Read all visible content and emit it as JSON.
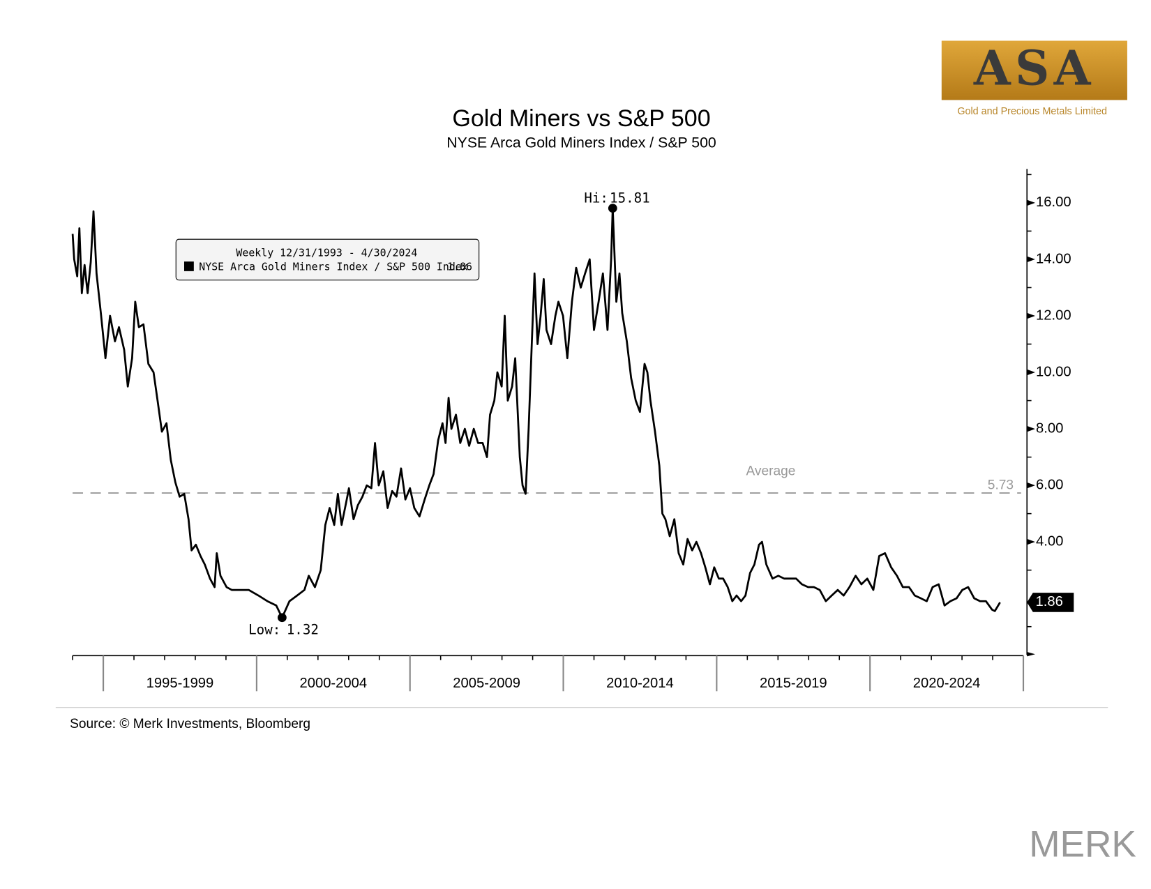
{
  "chart_data": {
    "type": "line",
    "title": "Gold Miners vs S&P 500",
    "subtitle": "NYSE Arca Gold Miners Index / S&P 500",
    "legend_title": "Weekly 12/31/1993 - 4/30/2024",
    "source": "Source: © Merk Investments, Bloomberg",
    "logo": {
      "name": "ASA",
      "tagline": "Gold and Precious Metals Limited"
    },
    "brand": "MERK",
    "hi_label": "Hi:",
    "low_label": "Low:",
    "average": {
      "label": "Average",
      "value": 5.73,
      "color": "#999999"
    },
    "xlim": [
      1994,
      2025.15
    ],
    "xticks": [
      1994,
      1995,
      1996,
      1997,
      1998,
      1999,
      2000,
      2001,
      2002,
      2003,
      2004,
      2005,
      2006,
      2007,
      2008,
      2009,
      2010,
      2011,
      2012,
      2013,
      2014,
      2015,
      2016,
      2017,
      2018,
      2019,
      2020,
      2021,
      2022,
      2023,
      2024,
      2025
    ],
    "major_xticks": [
      1995,
      2000,
      2005,
      2010,
      2015,
      2020,
      2025
    ],
    "x_categories": [
      "1995-1999",
      "2000-2004",
      "2005-2009",
      "2010-2014",
      "2015-2019",
      "2020-2024"
    ],
    "ylim": [
      0,
      17.2
    ],
    "yticks": [
      {
        "value": 4,
        "label": "4.00"
      },
      {
        "value": 6,
        "label": "6.00"
      },
      {
        "value": 8,
        "label": "8.00"
      },
      {
        "value": 10,
        "label": "10.00"
      },
      {
        "value": 12,
        "label": "12.00"
      },
      {
        "value": 14,
        "label": "14.00"
      },
      {
        "value": 16,
        "label": "16.00"
      }
    ],
    "minor_yticks": [
      1,
      3,
      5,
      7,
      9,
      11,
      13,
      15,
      17
    ],
    "series": [
      {
        "name": "NYSE Arca Gold Miners Index / S&P 500 Index",
        "color": "#000000",
        "x": [
          1994.0,
          1994.05,
          1994.15,
          1994.22,
          1994.3,
          1994.39,
          1994.49,
          1994.59,
          1994.68,
          1994.78,
          1994.92,
          1995.07,
          1995.22,
          1995.38,
          1995.51,
          1995.68,
          1995.8,
          1995.94,
          1996.04,
          1996.16,
          1996.31,
          1996.47,
          1996.64,
          1996.77,
          1996.91,
          1997.06,
          1997.2,
          1997.35,
          1997.49,
          1997.64,
          1997.78,
          1997.88,
          1998.02,
          1998.17,
          1998.31,
          1998.48,
          1998.63,
          1998.7,
          1998.82,
          1999.02,
          1999.19,
          1999.48,
          1999.74,
          2000.06,
          2000.35,
          2000.64,
          2000.83,
          2001.07,
          2001.32,
          2001.56,
          2001.7,
          2001.9,
          2002.09,
          2002.24,
          2002.38,
          2002.53,
          2002.65,
          2002.77,
          2002.92,
          2003.01,
          2003.16,
          2003.3,
          2003.45,
          2003.59,
          2003.74,
          2003.86,
          2003.98,
          2004.13,
          2004.27,
          2004.42,
          2004.56,
          2004.71,
          2004.85,
          2005.0,
          2005.14,
          2005.31,
          2005.48,
          2005.63,
          2005.77,
          2005.92,
          2006.06,
          2006.16,
          2006.26,
          2006.35,
          2006.5,
          2006.64,
          2006.79,
          2006.93,
          2007.08,
          2007.22,
          2007.37,
          2007.51,
          2007.61,
          2007.75,
          2007.85,
          2007.99,
          2008.09,
          2008.19,
          2008.33,
          2008.43,
          2008.58,
          2008.67,
          2008.77,
          2008.87,
          2008.97,
          2009.06,
          2009.16,
          2009.26,
          2009.36,
          2009.45,
          2009.6,
          2009.74,
          2009.84,
          2009.99,
          2010.13,
          2010.28,
          2010.42,
          2010.57,
          2010.71,
          2010.86,
          2011.0,
          2011.15,
          2011.29,
          2011.44,
          2011.56,
          2011.61,
          2011.73,
          2011.83,
          2011.92,
          2012.07,
          2012.21,
          2012.36,
          2012.5,
          2012.65,
          2012.74,
          2012.84,
          2012.99,
          2013.13,
          2013.23,
          2013.33,
          2013.47,
          2013.62,
          2013.76,
          2013.91,
          2014.05,
          2014.2,
          2014.34,
          2014.49,
          2014.63,
          2014.78,
          2014.92,
          2015.07,
          2015.21,
          2015.36,
          2015.51,
          2015.65,
          2015.8,
          2015.94,
          2016.09,
          2016.23,
          2016.38,
          2016.48,
          2016.62,
          2016.82,
          2017.01,
          2017.2,
          2017.4,
          2017.59,
          2017.78,
          2017.98,
          2018.17,
          2018.36,
          2018.56,
          2018.75,
          2018.95,
          2019.14,
          2019.33,
          2019.53,
          2019.72,
          2019.91,
          2020.11,
          2020.3,
          2020.49,
          2020.69,
          2020.88,
          2021.07,
          2021.27,
          2021.46,
          2021.66,
          2021.85,
          2022.04,
          2022.24,
          2022.43,
          2022.62,
          2022.82,
          2023.01,
          2023.2,
          2023.4,
          2023.59,
          2023.78,
          2023.98,
          2024.07,
          2024.24
        ],
        "values": [
          14.9,
          14.0,
          13.4,
          15.1,
          12.8,
          13.8,
          12.8,
          13.9,
          15.7,
          13.5,
          12.1,
          10.5,
          12.0,
          11.1,
          11.6,
          10.8,
          9.5,
          10.5,
          12.5,
          11.6,
          11.7,
          10.3,
          10.0,
          9.0,
          7.9,
          8.2,
          6.9,
          6.1,
          5.6,
          5.7,
          4.8,
          3.7,
          3.9,
          3.5,
          3.2,
          2.7,
          2.4,
          3.6,
          2.8,
          2.4,
          2.3,
          2.3,
          2.3,
          2.1,
          1.9,
          1.75,
          1.32,
          1.9,
          2.1,
          2.3,
          2.8,
          2.4,
          3.0,
          4.6,
          5.2,
          4.6,
          5.7,
          4.6,
          5.4,
          5.9,
          4.8,
          5.3,
          5.6,
          6.0,
          5.9,
          7.5,
          6.0,
          6.5,
          5.2,
          5.8,
          5.6,
          6.6,
          5.5,
          5.9,
          5.2,
          4.9,
          5.5,
          6.0,
          6.4,
          7.6,
          8.2,
          7.5,
          9.1,
          8.0,
          8.5,
          7.5,
          8.0,
          7.4,
          8.0,
          7.5,
          7.5,
          7.0,
          8.5,
          9.0,
          10.0,
          9.5,
          12.0,
          9.0,
          9.5,
          10.5,
          7.0,
          6.0,
          5.7,
          8.0,
          11.0,
          13.5,
          11.0,
          12.0,
          13.3,
          11.5,
          11.0,
          12.0,
          12.5,
          12.0,
          10.5,
          12.5,
          13.7,
          13.0,
          13.5,
          14.0,
          11.5,
          12.5,
          13.5,
          11.5,
          14.0,
          15.81,
          12.5,
          13.5,
          12.1,
          11.1,
          9.8,
          9.0,
          8.6,
          10.3,
          10.0,
          9.0,
          7.9,
          6.7,
          5.0,
          4.8,
          4.2,
          4.8,
          3.6,
          3.2,
          4.1,
          3.7,
          4.0,
          3.6,
          3.1,
          2.5,
          3.1,
          2.7,
          2.7,
          2.4,
          1.9,
          2.1,
          1.9,
          2.1,
          2.9,
          3.2,
          3.9,
          4.0,
          3.2,
          2.7,
          2.8,
          2.7,
          2.7,
          2.7,
          2.5,
          2.4,
          2.4,
          2.3,
          1.9,
          2.1,
          2.3,
          2.1,
          2.4,
          2.8,
          2.5,
          2.7,
          2.3,
          3.5,
          3.6,
          3.1,
          2.8,
          2.4,
          2.4,
          2.1,
          2.0,
          1.9,
          2.4,
          2.5,
          1.75,
          1.9,
          2.0,
          2.3,
          2.4,
          2.0,
          1.9,
          1.9,
          1.6,
          1.55,
          1.86
        ]
      }
    ]
  }
}
